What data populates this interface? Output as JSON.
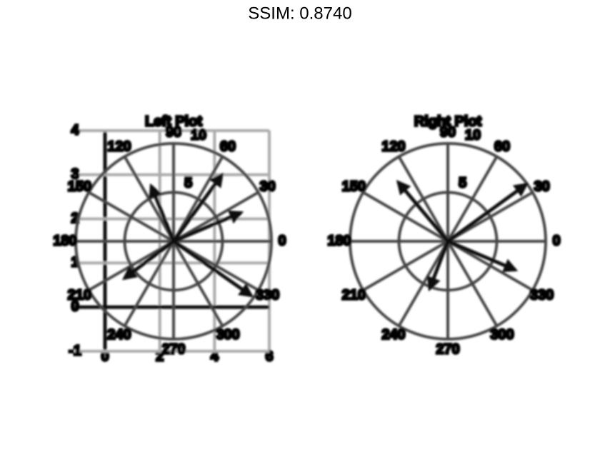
{
  "title": "SSIM: 0.8740",
  "chart_data": [
    {
      "type": "compass",
      "title": "Left Plot",
      "angles": [
        54,
        23,
        112,
        217,
        325
      ],
      "magnitudes": [
        8.4,
        7.5,
        6.1,
        6.3,
        9.7
      ],
      "color": "#111111",
      "rlim": [
        0,
        10
      ],
      "rticks": [
        5,
        10
      ],
      "thetaticks": [
        0,
        30,
        60,
        90,
        120,
        150,
        180,
        210,
        240,
        270,
        300,
        330
      ],
      "xlim": [
        0,
        6
      ],
      "xticks": [
        0,
        2,
        4,
        6
      ],
      "ylim": [
        -1,
        4
      ],
      "yticks": [
        -1,
        0,
        1,
        2,
        3,
        4
      ],
      "grid": true
    },
    {
      "type": "compass",
      "title": "Right Plot",
      "angles": [
        36,
        130,
        337,
        249
      ],
      "magnitudes": [
        9.9,
        7.9,
        7.5,
        5.2
      ],
      "color": "#111111",
      "rlim": [
        0,
        10
      ],
      "rticks": [
        5,
        10
      ],
      "thetaticks": [
        0,
        30,
        60,
        90,
        120,
        150,
        180,
        210,
        240,
        270,
        300,
        330
      ]
    }
  ]
}
